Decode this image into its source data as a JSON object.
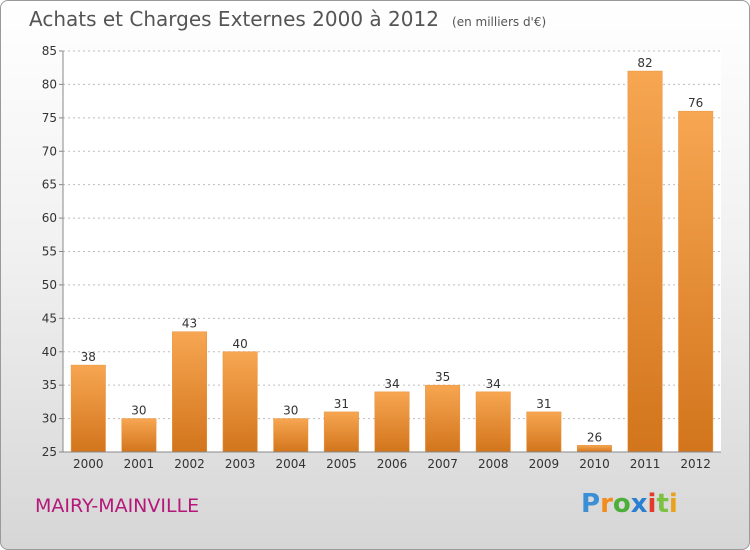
{
  "title": "Achats et Charges Externes 2000 à 2012",
  "unit": "(en milliers d'€)",
  "town": "MAIRY-MAINVILLE",
  "brand": {
    "letters": [
      "P",
      "r",
      "o",
      "x",
      "i",
      "t",
      "i"
    ],
    "colors": [
      "#3a8fd6",
      "#f28c1e",
      "#4caf3a",
      "#2a7fd0",
      "#e23b2a",
      "#7cc242",
      "#e8a31c"
    ]
  },
  "colors": {
    "bar_light": "#f7a652",
    "bar_dark": "#d2751c",
    "grid": "#bdbdbd"
  },
  "chart_data": {
    "type": "bar",
    "categories": [
      "2000",
      "2001",
      "2002",
      "2003",
      "2004",
      "2005",
      "2006",
      "2007",
      "2008",
      "2009",
      "2010",
      "2011",
      "2012"
    ],
    "values": [
      38,
      30,
      43,
      40,
      30,
      31,
      34,
      35,
      34,
      31,
      26,
      82,
      76
    ],
    "ylim": [
      25,
      85
    ],
    "yticks": [
      25,
      30,
      35,
      40,
      45,
      50,
      55,
      60,
      65,
      70,
      75,
      80,
      85
    ],
    "grid": true,
    "legend": "none"
  }
}
